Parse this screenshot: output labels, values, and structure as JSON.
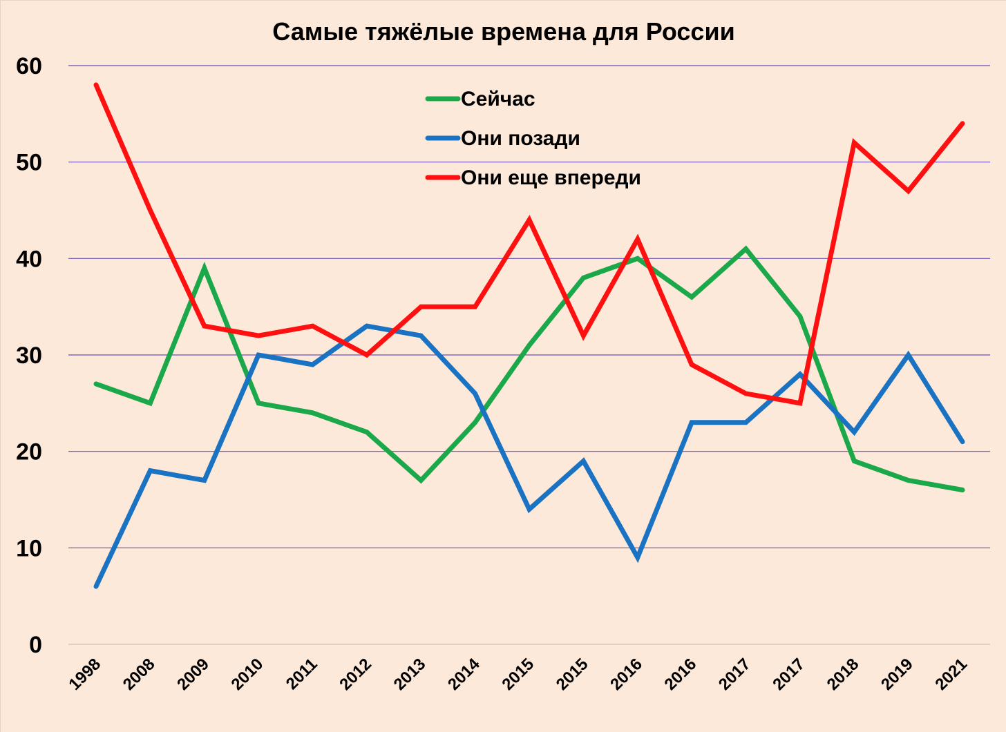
{
  "colors": {
    "background": "#fde9d9",
    "grid": "#6a4fb5",
    "green": "#1ba84a",
    "blue": "#1a72c2",
    "red": "#ff1010"
  },
  "chart_data": {
    "type": "line",
    "title": "Самые тяжёлые времена для России",
    "xlabel": "",
    "ylabel": "",
    "ylim": [
      0,
      60
    ],
    "yticks": [
      "0",
      "10",
      "20",
      "30",
      "40",
      "50",
      "60"
    ],
    "grid": true,
    "legend_position": "top-center",
    "categories": [
      "1998",
      "2008",
      "2009",
      "2010",
      "2011",
      "2012",
      "2013",
      "2014",
      "2015",
      "2015",
      "2016",
      "2016",
      "2017",
      "2017",
      "2018",
      "2019",
      "2021"
    ],
    "series": [
      {
        "name": "Сейчас",
        "color": "#1ba84a",
        "values": [
          27,
          25,
          39,
          25,
          24,
          22,
          17,
          23,
          31,
          38,
          40,
          36,
          41,
          34,
          19,
          17,
          16
        ]
      },
      {
        "name": "Они позади",
        "color": "#1a72c2",
        "values": [
          6,
          18,
          17,
          30,
          29,
          33,
          32,
          26,
          14,
          19,
          9,
          23,
          23,
          28,
          22,
          30,
          21
        ]
      },
      {
        "name": "Они еще впереди",
        "color": "#ff1010",
        "values": [
          58,
          45,
          33,
          32,
          33,
          30,
          35,
          35,
          44,
          32,
          42,
          29,
          26,
          25,
          52,
          47,
          54
        ]
      }
    ]
  }
}
